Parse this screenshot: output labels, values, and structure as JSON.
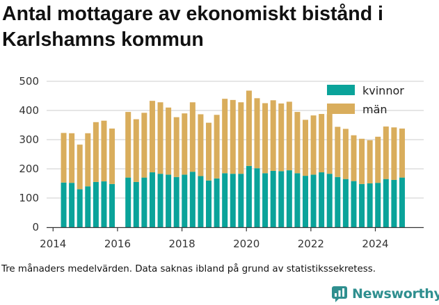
{
  "title": "Antal mottagare av ekonomiskt bistånd i Karlshamns kommun",
  "footnote": "Tre månaders medelvärden. Data saknas ibland på grund av statistikssekretess.",
  "brand": "Newsworthy",
  "colors": {
    "kvinnor": "#0aa39a",
    "man": "#d9ad5c",
    "grid": "#cccccc",
    "axis": "#333333"
  },
  "chart_data": {
    "type": "bar",
    "stacked": true,
    "xlim": [
      2013.8,
      2025.5
    ],
    "ylim": [
      0,
      500
    ],
    "y_ticks": [
      0,
      100,
      200,
      300,
      400,
      500
    ],
    "x_ticks": [
      2014,
      2016,
      2018,
      2020,
      2022,
      2024
    ],
    "y_tick_labels": [
      "0",
      "100",
      "200",
      "300",
      "400",
      "500"
    ],
    "x_tick_labels": [
      "2014",
      "2016",
      "2018",
      "2020",
      "2022",
      "2024"
    ],
    "grid": true,
    "legend_position": "top-right",
    "series_names": [
      "kvinnor",
      "män"
    ],
    "x": [
      2014.33,
      2014.58,
      2014.83,
      2015.08,
      2015.33,
      2015.58,
      2015.83,
      2016.33,
      2016.58,
      2016.83,
      2017.08,
      2017.33,
      2017.58,
      2017.83,
      2018.08,
      2018.33,
      2018.58,
      2018.83,
      2019.08,
      2019.33,
      2019.58,
      2019.83,
      2020.08,
      2020.33,
      2020.58,
      2020.83,
      2021.08,
      2021.33,
      2021.58,
      2021.83,
      2022.08,
      2022.33,
      2022.58,
      2022.83,
      2023.08,
      2023.33,
      2023.58,
      2023.83,
      2024.08,
      2024.33,
      2024.58,
      2024.83
    ],
    "series": [
      {
        "name": "kvinnor",
        "values": [
          153,
          152,
          130,
          140,
          155,
          157,
          148,
          170,
          155,
          170,
          188,
          183,
          180,
          172,
          180,
          190,
          175,
          160,
          167,
          185,
          183,
          183,
          210,
          202,
          185,
          193,
          192,
          195,
          185,
          176,
          180,
          188,
          183,
          172,
          165,
          158,
          148,
          150,
          152,
          165,
          162,
          170
        ]
      },
      {
        "name": "män",
        "values": [
          170,
          170,
          153,
          182,
          205,
          208,
          190,
          225,
          215,
          222,
          245,
          245,
          230,
          205,
          210,
          238,
          212,
          198,
          218,
          255,
          253,
          245,
          258,
          240,
          240,
          242,
          232,
          235,
          210,
          192,
          203,
          200,
          205,
          172,
          172,
          157,
          155,
          148,
          158,
          180,
          180,
          168
        ]
      }
    ]
  }
}
